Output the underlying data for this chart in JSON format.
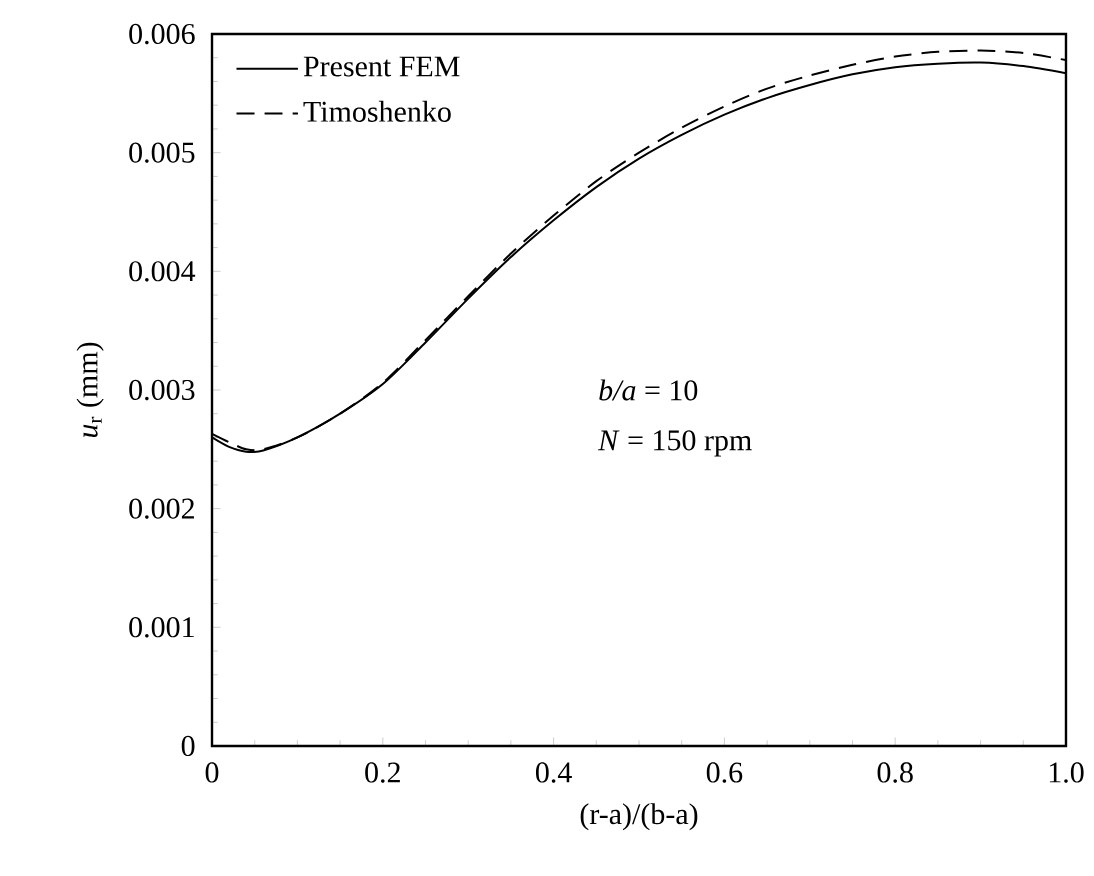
{
  "chart_data": {
    "type": "line",
    "xlabel": "(r-a)/(b-a)",
    "ylabel": "*u*$_{r}$ (mm)",
    "annotations": [
      "*b/a* = 10",
      "*N* = 150 rpm"
    ],
    "xlim": [
      0,
      1
    ],
    "ylim": [
      0,
      0.006
    ],
    "xticks": [
      0,
      0.2,
      0.4,
      0.6,
      0.8,
      {
        "value": 1,
        "label": "1.0"
      }
    ],
    "yticks": [
      0,
      0.001,
      0.002,
      0.003,
      0.004,
      0.005,
      0.006
    ],
    "x": [
      0,
      0.02,
      0.04,
      0.06,
      0.1,
      0.15,
      0.2,
      0.25,
      0.3,
      0.35,
      0.4,
      0.45,
      0.5,
      0.55,
      0.6,
      0.65,
      0.7,
      0.75,
      0.8,
      0.85,
      0.9,
      0.95,
      1.0
    ],
    "legend": "top left",
    "grid": false,
    "marker": "none",
    "series": [
      {
        "name": "Present FEM",
        "color": "#000000",
        "line_style": "solid",
        "values": [
          0.0026,
          0.00252,
          0.00248,
          0.00249,
          0.0026,
          0.0028,
          0.00305,
          0.0034,
          0.00377,
          0.00412,
          0.00443,
          0.00471,
          0.00495,
          0.00515,
          0.00532,
          0.00546,
          0.00557,
          0.00566,
          0.00572,
          0.00575,
          0.00576,
          0.00573,
          0.00567
        ]
      },
      {
        "name": "Timoshenko",
        "color": "#000000",
        "line_style": "dashed",
        "values": [
          0.00263,
          0.00256,
          0.0025,
          0.0025,
          0.0026,
          0.0028,
          0.00306,
          0.00342,
          0.00379,
          0.00415,
          0.00447,
          0.00476,
          0.005,
          0.00521,
          0.00539,
          0.00554,
          0.00565,
          0.00574,
          0.00581,
          0.00585,
          0.00586,
          0.00584,
          0.00578
        ]
      }
    ]
  }
}
